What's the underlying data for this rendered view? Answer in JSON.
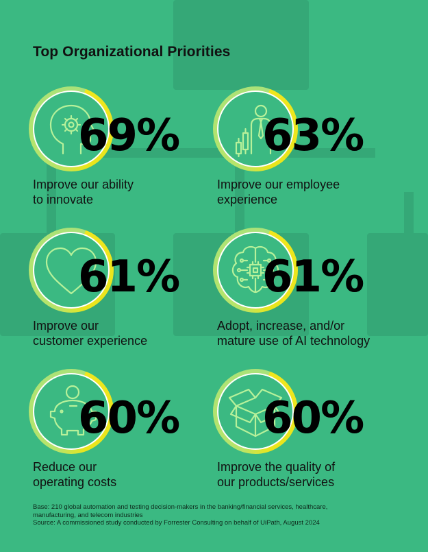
{
  "title": "Top Organizational Priorities",
  "colors": {
    "background": "#3bb982",
    "ring_yellow": "#f0e61e",
    "ring_green": "#a9e27a",
    "icon_stroke": "#b7f19a"
  },
  "items": [
    {
      "percent": "69%",
      "line1": "Improve our ability",
      "line2": "to innovate",
      "icon": "head-gear-icon"
    },
    {
      "percent": "63%",
      "line1": "Improve our employee",
      "line2": "experience",
      "icon": "employee-chart-icon"
    },
    {
      "percent": "61%",
      "line1": "Improve our",
      "line2": "customer experience",
      "icon": "heart-icon"
    },
    {
      "percent": "61%",
      "line1": "Adopt, increase, and/or",
      "line2": "mature use of AI technology",
      "icon": "brain-chip-icon"
    },
    {
      "percent": "60%",
      "line1": "Reduce our",
      "line2": "operating costs",
      "icon": "piggy-bank-icon"
    },
    {
      "percent": "60%",
      "line1": "Improve the quality of",
      "line2": "our products/services",
      "icon": "open-box-icon"
    }
  ],
  "footnote": {
    "base_line1": "Base: 210 global automation and testing decision-makers in the banking/financial services, healthcare,",
    "base_line2": "manufacturing, and telecom industries",
    "source": "Source: A commissioned study conducted by Forrester Consulting on behalf of UiPath, August 2024"
  }
}
